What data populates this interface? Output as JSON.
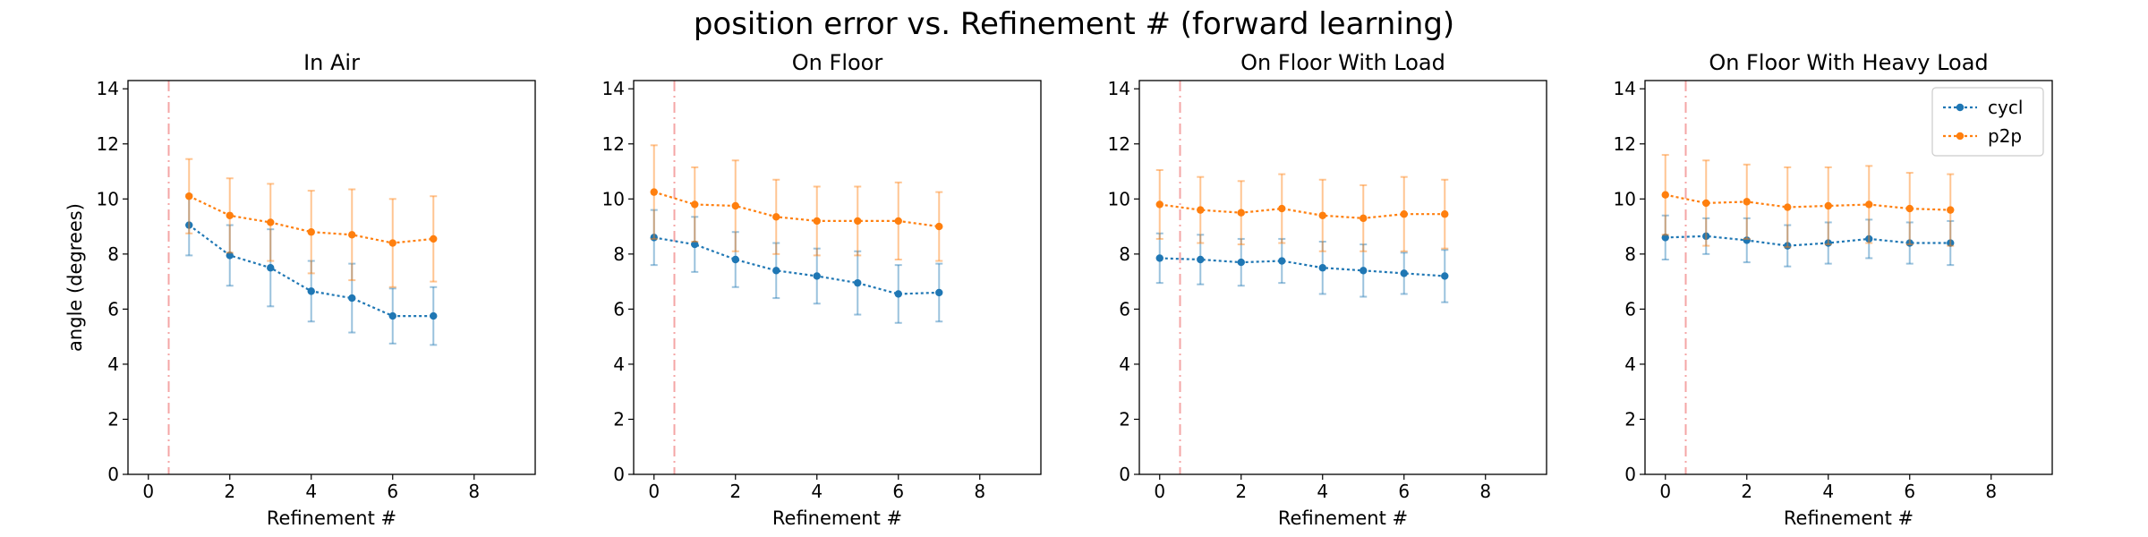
{
  "figure": {
    "title": "position error vs. Refinement # (forward learning)"
  },
  "colors": {
    "cycl": "#1f77b4",
    "p2p": "#ff7f0e",
    "vline": "#f4a6a6"
  },
  "chart_data": [
    {
      "type": "line",
      "title": "In Air",
      "xlabel": "Refinement #",
      "ylabel": "angle (degrees)",
      "xlim": [
        -0.5,
        9.5
      ],
      "ylim": [
        0,
        14.3
      ],
      "xticks": [
        0,
        2,
        4,
        6,
        8
      ],
      "yticks": [
        0,
        2,
        4,
        6,
        8,
        10,
        12,
        14
      ],
      "vline_x": 0.5,
      "legend": false,
      "series": [
        {
          "name": "cycl",
          "x": [
            1,
            2,
            3,
            4,
            5,
            6,
            7
          ],
          "values": [
            9.05,
            7.95,
            7.5,
            6.65,
            6.4,
            5.75,
            5.75
          ],
          "err": [
            1.1,
            1.1,
            1.4,
            1.1,
            1.25,
            1.0,
            1.05
          ]
        },
        {
          "name": "p2p",
          "x": [
            1,
            2,
            3,
            4,
            5,
            6,
            7
          ],
          "values": [
            10.1,
            9.4,
            9.15,
            8.8,
            8.7,
            8.4,
            8.55
          ],
          "err": [
            1.35,
            1.35,
            1.4,
            1.5,
            1.65,
            1.6,
            1.55
          ]
        }
      ]
    },
    {
      "type": "line",
      "title": "On Floor",
      "xlabel": "Refinement #",
      "ylabel": "",
      "xlim": [
        -0.5,
        9.5
      ],
      "ylim": [
        0,
        14.3
      ],
      "xticks": [
        0,
        2,
        4,
        6,
        8
      ],
      "yticks": [
        0,
        2,
        4,
        6,
        8,
        10,
        12,
        14
      ],
      "vline_x": 0.5,
      "legend": false,
      "series": [
        {
          "name": "cycl",
          "x": [
            0,
            1,
            2,
            3,
            4,
            5,
            6,
            7
          ],
          "values": [
            8.6,
            8.35,
            7.8,
            7.4,
            7.2,
            6.95,
            6.55,
            6.6
          ],
          "err": [
            1.0,
            1.0,
            1.0,
            1.0,
            1.0,
            1.15,
            1.05,
            1.05
          ]
        },
        {
          "name": "p2p",
          "x": [
            0,
            1,
            2,
            3,
            4,
            5,
            6,
            7
          ],
          "values": [
            10.25,
            9.8,
            9.75,
            9.35,
            9.2,
            9.2,
            9.2,
            9.0
          ],
          "err": [
            1.7,
            1.35,
            1.65,
            1.35,
            1.25,
            1.25,
            1.4,
            1.25
          ]
        }
      ]
    },
    {
      "type": "line",
      "title": "On Floor With Load",
      "xlabel": "Refinement #",
      "ylabel": "",
      "xlim": [
        -0.5,
        9.5
      ],
      "ylim": [
        0,
        14.3
      ],
      "xticks": [
        0,
        2,
        4,
        6,
        8
      ],
      "yticks": [
        0,
        2,
        4,
        6,
        8,
        10,
        12,
        14
      ],
      "vline_x": 0.5,
      "legend": false,
      "series": [
        {
          "name": "cycl",
          "x": [
            0,
            1,
            2,
            3,
            4,
            5,
            6,
            7
          ],
          "values": [
            7.85,
            7.8,
            7.7,
            7.75,
            7.5,
            7.4,
            7.3,
            7.2
          ],
          "err": [
            0.9,
            0.9,
            0.85,
            0.8,
            0.95,
            0.95,
            0.75,
            0.95
          ]
        },
        {
          "name": "p2p",
          "x": [
            0,
            1,
            2,
            3,
            4,
            5,
            6,
            7
          ],
          "values": [
            9.8,
            9.6,
            9.5,
            9.65,
            9.4,
            9.3,
            9.45,
            9.45
          ],
          "err": [
            1.25,
            1.2,
            1.15,
            1.25,
            1.3,
            1.2,
            1.35,
            1.25
          ]
        }
      ]
    },
    {
      "type": "line",
      "title": "On Floor With Heavy Load",
      "xlabel": "Refinement #",
      "ylabel": "",
      "xlim": [
        -0.5,
        9.5
      ],
      "ylim": [
        0,
        14.3
      ],
      "xticks": [
        0,
        2,
        4,
        6,
        8
      ],
      "yticks": [
        0,
        2,
        4,
        6,
        8,
        10,
        12,
        14
      ],
      "vline_x": 0.5,
      "legend": true,
      "legend_position": "top-right",
      "series": [
        {
          "name": "cycl",
          "x": [
            0,
            1,
            2,
            3,
            4,
            5,
            6,
            7
          ],
          "values": [
            8.6,
            8.65,
            8.5,
            8.3,
            8.4,
            8.55,
            8.4,
            8.4
          ],
          "err": [
            0.8,
            0.65,
            0.8,
            0.75,
            0.75,
            0.7,
            0.75,
            0.8
          ]
        },
        {
          "name": "p2p",
          "x": [
            0,
            1,
            2,
            3,
            4,
            5,
            6,
            7
          ],
          "values": [
            10.15,
            9.85,
            9.9,
            9.7,
            9.75,
            9.8,
            9.65,
            9.6
          ],
          "err": [
            1.45,
            1.55,
            1.35,
            1.45,
            1.4,
            1.4,
            1.3,
            1.3
          ]
        }
      ]
    }
  ]
}
